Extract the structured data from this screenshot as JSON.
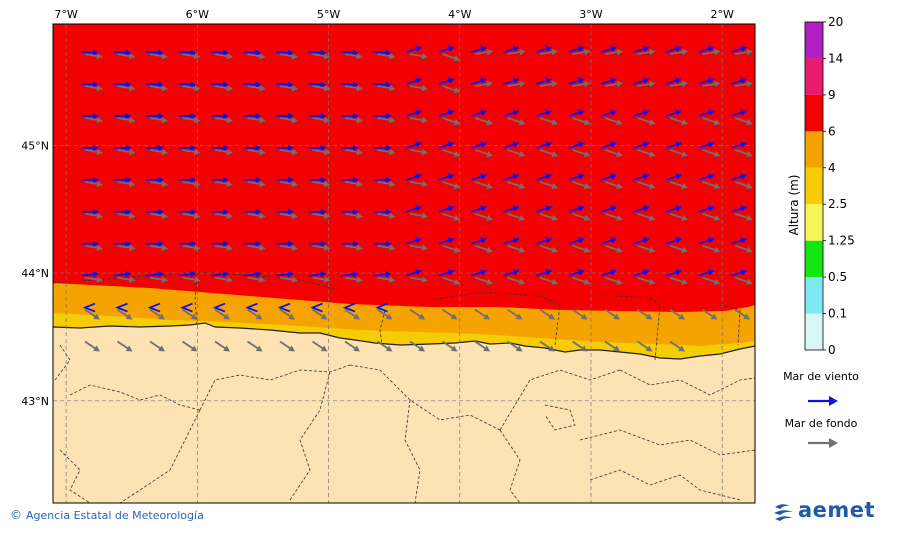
{
  "colors": {
    "land": "#fde2b4",
    "border": "#333333",
    "wind_arrow": "#1010e6",
    "swell_arrow": "#707070",
    "grid": "#777777"
  },
  "map": {
    "lon_labels": [
      "7°W",
      "6°W",
      "5°W",
      "4°W",
      "3°W",
      "2°W"
    ],
    "lat_labels": [
      "45°N",
      "44°N",
      "43°N"
    ],
    "lon_range": [
      -7.1,
      -1.75
    ],
    "lat_range": [
      42.2,
      45.95
    ],
    "wind_arrow_rows_lat": [
      45.73,
      45.48,
      45.23,
      44.98,
      44.73,
      44.48,
      44.23,
      43.98,
      43.73
    ],
    "swell_arrow_rows_lat": [
      45.73,
      45.48,
      45.23,
      44.98,
      44.73,
      44.48,
      44.23,
      43.98,
      43.73,
      43.48
    ]
  },
  "colorbar": {
    "title": "Altura (m)",
    "levels": [
      "0",
      "0.1",
      "0.5",
      "1.25",
      "2.5",
      "4",
      "6",
      "9",
      "14",
      "20"
    ],
    "colors": [
      "#d8f6f8",
      "#7ee8f3",
      "#14e614",
      "#f5f55a",
      "#f5cc05",
      "#f5a300",
      "#f50000",
      "#ea1a6c",
      "#b01fc0"
    ]
  },
  "legend": {
    "wind_label": "Mar de viento",
    "swell_label": "Mar de fondo"
  },
  "footer": {
    "copyright_symbol": "©",
    "credit": "Agencia Estatal de Meteorología",
    "logo_text": "aemet",
    "logo_icon": "aemet-swirl-logo"
  }
}
